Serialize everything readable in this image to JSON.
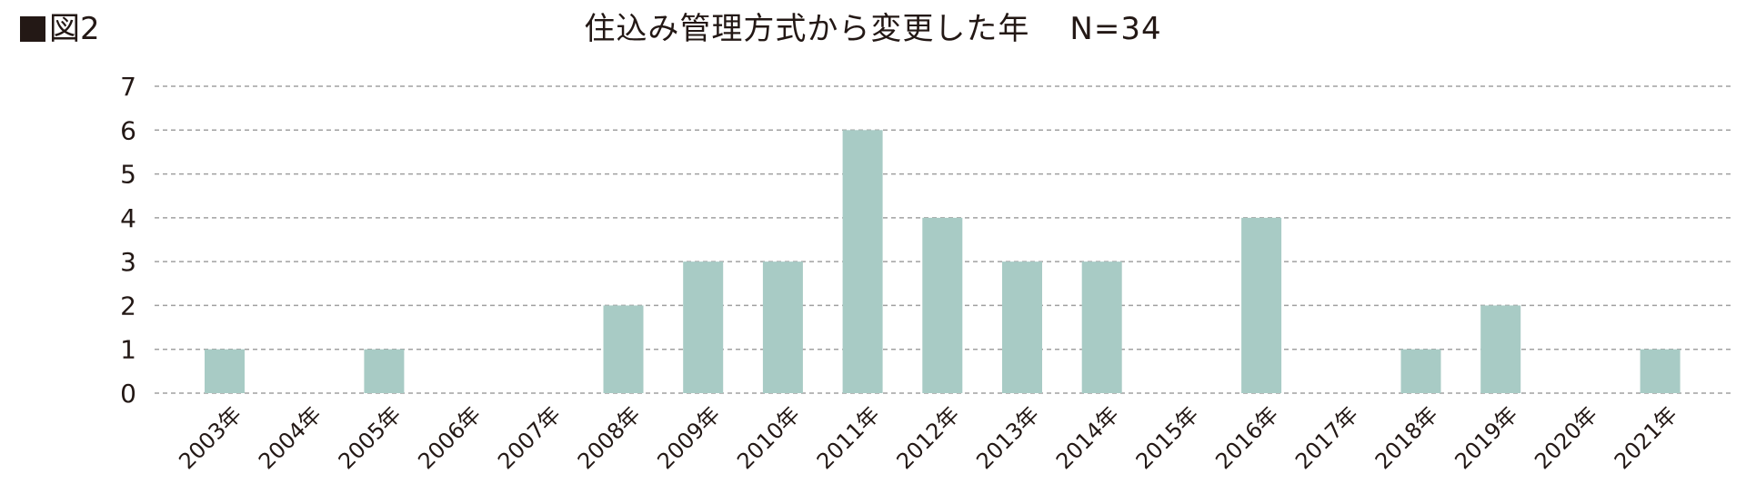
{
  "figure_label": "図2",
  "chart_data": {
    "type": "bar",
    "title": "住込み管理方式から変更した年",
    "subtitle": "N=34",
    "categories": [
      "2003年",
      "2004年",
      "2005年",
      "2006年",
      "2007年",
      "2008年",
      "2009年",
      "2010年",
      "2011年",
      "2012年",
      "2013年",
      "2014年",
      "2015年",
      "2016年",
      "2017年",
      "2018年",
      "2019年",
      "2020年",
      "2021年"
    ],
    "values": [
      1,
      0,
      1,
      0,
      0,
      2,
      3,
      3,
      6,
      4,
      3,
      3,
      0,
      4,
      0,
      1,
      2,
      0,
      1
    ],
    "xlabel": "",
    "ylabel": "",
    "ylim": [
      0,
      7
    ],
    "yticks": [
      0,
      1,
      2,
      3,
      4,
      5,
      6,
      7
    ],
    "grid": true,
    "grid_style": "dashed",
    "bar_color": "#a8cbc5",
    "grid_color": "#a0a0a0",
    "text_color": "#231815"
  }
}
